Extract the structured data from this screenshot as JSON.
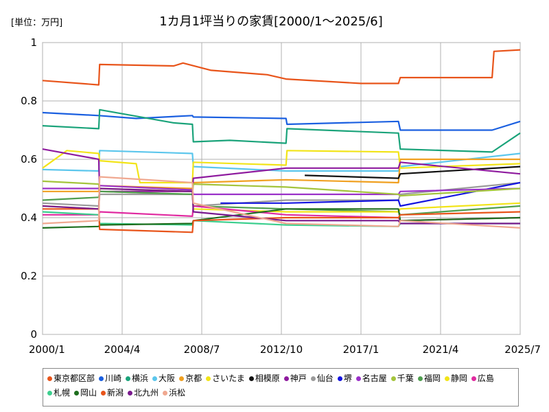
{
  "chart_data": {
    "type": "line",
    "title": "1カ月1坪当りの家賃[2000/1～2025/6]",
    "unit_label": "[単位：万円]",
    "xlabel": "",
    "ylabel": "",
    "ylim": [
      0,
      1
    ],
    "y_ticks": [
      "0",
      "0.2",
      "0.4",
      "0.6",
      "0.8",
      "1"
    ],
    "y_tick_values": [
      0,
      0.2,
      0.4,
      0.6,
      0.8,
      1
    ],
    "x_range": [
      2000.0,
      2025.5
    ],
    "x_ticks": [
      "2000/1",
      "2004/4",
      "2008/7",
      "2012/10",
      "2017/1",
      "2021/4",
      "2025/7"
    ],
    "x_tick_values": [
      2000.0,
      2004.25,
      2008.5,
      2012.75,
      2017.0,
      2021.25,
      2025.5
    ],
    "grid": true,
    "legend_position": "bottom",
    "series": [
      {
        "name": "東京都区部",
        "color": "#e8541a",
        "x": [
          2000.0,
          2003.0,
          2003.05,
          2007.0,
          2007.5,
          2009.0,
          2012.0,
          2013.0,
          2017.0,
          2019.0,
          2019.1,
          2024.0,
          2024.1,
          2025.5
        ],
        "values": [
          0.87,
          0.855,
          0.925,
          0.92,
          0.93,
          0.905,
          0.89,
          0.875,
          0.86,
          0.86,
          0.88,
          0.88,
          0.97,
          0.975
        ]
      },
      {
        "name": "川崎",
        "color": "#1a5fe0",
        "x": [
          2000.0,
          2003.0,
          2005.0,
          2008.0,
          2008.05,
          2013.0,
          2013.05,
          2019.0,
          2019.1,
          2024.0,
          2025.5
        ],
        "values": [
          0.76,
          0.75,
          0.74,
          0.75,
          0.745,
          0.74,
          0.72,
          0.73,
          0.7,
          0.7,
          0.73
        ]
      },
      {
        "name": "横浜",
        "color": "#1aa37a",
        "x": [
          2000.0,
          2003.0,
          2003.05,
          2007.0,
          2008.0,
          2008.05,
          2010.0,
          2013.0,
          2013.05,
          2019.0,
          2019.1,
          2024.0,
          2025.5
        ],
        "values": [
          0.715,
          0.705,
          0.77,
          0.725,
          0.72,
          0.66,
          0.665,
          0.655,
          0.705,
          0.69,
          0.635,
          0.625,
          0.69
        ]
      },
      {
        "name": "大阪",
        "color": "#5bc6ec",
        "x": [
          2000.0,
          2003.0,
          2003.05,
          2008.0,
          2008.05,
          2013.0,
          2019.0,
          2019.1,
          2025.5
        ],
        "values": [
          0.565,
          0.56,
          0.63,
          0.62,
          0.575,
          0.56,
          0.56,
          0.575,
          0.62
        ]
      },
      {
        "name": "京都",
        "color": "#f0a020",
        "x": [
          2000.0,
          2003.0,
          2003.05,
          2008.0,
          2008.05,
          2013.0,
          2019.0,
          2019.1,
          2025.5
        ],
        "values": [
          0.49,
          0.49,
          0.51,
          0.5,
          0.52,
          0.53,
          0.52,
          0.6,
          0.6
        ]
      },
      {
        "name": "さいたま",
        "color": "#f2e418",
        "x": [
          2000.0,
          2001.3,
          2003.0,
          2003.05,
          2005.0,
          2005.2,
          2008.0,
          2008.05,
          2013.0,
          2013.05,
          2019.0,
          2019.1,
          2025.5
        ],
        "values": [
          0.57,
          0.63,
          0.62,
          0.595,
          0.585,
          0.52,
          0.52,
          0.59,
          0.58,
          0.63,
          0.625,
          0.57,
          0.585
        ]
      },
      {
        "name": "相模原",
        "color": "#111111",
        "x": [
          2014.0,
          2019.0,
          2019.1,
          2025.5
        ],
        "values": [
          0.545,
          0.535,
          0.55,
          0.575
        ]
      },
      {
        "name": "神戸",
        "color": "#8e1a9e",
        "x": [
          2000.0,
          2003.0,
          2003.05,
          2008.0,
          2008.05,
          2013.0,
          2019.0,
          2019.1,
          2025.5
        ],
        "values": [
          0.635,
          0.6,
          0.49,
          0.49,
          0.535,
          0.57,
          0.57,
          0.59,
          0.55
        ]
      },
      {
        "name": "仙台",
        "color": "#9a9a9a",
        "x": [
          2000.0,
          2003.0,
          2003.05,
          2008.0,
          2008.05,
          2013.0,
          2019.0,
          2019.1,
          2025.5
        ],
        "values": [
          0.45,
          0.44,
          0.48,
          0.48,
          0.44,
          0.46,
          0.46,
          0.48,
          0.52
        ]
      },
      {
        "name": "堺",
        "color": "#1414e0",
        "x": [
          2009.5,
          2013.0,
          2019.0,
          2019.1,
          2025.5
        ],
        "values": [
          0.45,
          0.45,
          0.46,
          0.44,
          0.52
        ]
      },
      {
        "name": "名古屋",
        "color": "#9a30c8",
        "x": [
          2000.0,
          2003.0,
          2003.05,
          2008.0,
          2008.05,
          2013.0,
          2019.0,
          2019.1,
          2025.5
        ],
        "values": [
          0.5,
          0.5,
          0.51,
          0.495,
          0.48,
          0.48,
          0.48,
          0.49,
          0.5
        ]
      },
      {
        "name": "千葉",
        "color": "#a4c43c",
        "x": [
          2000.0,
          2003.0,
          2003.05,
          2008.0,
          2008.05,
          2013.0,
          2019.0,
          2019.1,
          2025.5
        ],
        "values": [
          0.525,
          0.515,
          0.49,
          0.48,
          0.515,
          0.505,
          0.48,
          0.475,
          0.5
        ]
      },
      {
        "name": "福岡",
        "color": "#4e9e4e",
        "x": [
          2000.0,
          2003.0,
          2003.05,
          2008.0,
          2008.05,
          2013.0,
          2019.0,
          2019.1,
          2025.5
        ],
        "values": [
          0.46,
          0.47,
          0.49,
          0.48,
          0.44,
          0.43,
          0.42,
          0.41,
          0.44
        ]
      },
      {
        "name": "静岡",
        "color": "#f2e418",
        "x": [
          2000.0,
          2003.0,
          2003.05,
          2008.0,
          2008.05,
          2013.0,
          2019.0,
          2019.1,
          2025.5
        ],
        "values": [
          0.44,
          0.43,
          0.5,
          0.49,
          0.43,
          0.42,
          0.42,
          0.43,
          0.45
        ]
      },
      {
        "name": "広島",
        "color": "#e02aa0",
        "x": [
          2000.0,
          2003.0,
          2003.05,
          2008.0,
          2008.05,
          2013.0,
          2019.0,
          2019.1,
          2025.5
        ],
        "values": [
          0.41,
          0.41,
          0.42,
          0.405,
          0.44,
          0.41,
          0.4,
          0.39,
          0.4
        ]
      },
      {
        "name": "札幌",
        "color": "#3ccf8e",
        "x": [
          2000.0,
          2003.0,
          2003.05,
          2008.0,
          2008.05,
          2013.0,
          2019.0,
          2019.1,
          2025.5
        ],
        "values": [
          0.42,
          0.41,
          0.38,
          0.375,
          0.39,
          0.375,
          0.37,
          0.38,
          0.38
        ]
      },
      {
        "name": "岡山",
        "color": "#1e6e1e",
        "x": [
          2000.0,
          2003.0,
          2003.05,
          2008.0,
          2008.05,
          2013.0,
          2019.0,
          2019.1,
          2025.5
        ],
        "values": [
          0.365,
          0.37,
          0.375,
          0.38,
          0.39,
          0.43,
          0.43,
          0.39,
          0.4
        ]
      },
      {
        "name": "新潟",
        "color": "#e8541a",
        "x": [
          2000.0,
          2003.0,
          2003.05,
          2008.0,
          2008.05,
          2013.0,
          2019.0,
          2019.1,
          2025.5
        ],
        "values": [
          0.43,
          0.43,
          0.36,
          0.35,
          0.39,
          0.4,
          0.4,
          0.41,
          0.42
        ]
      },
      {
        "name": "北九州",
        "color": "#7a1a8e",
        "x": [
          2000.0,
          2003.0,
          2003.05,
          2008.0,
          2008.05,
          2013.0,
          2019.0,
          2019.1,
          2025.5
        ],
        "values": [
          0.44,
          0.43,
          0.5,
          0.49,
          0.42,
          0.39,
          0.39,
          0.38,
          0.38
        ]
      },
      {
        "name": "浜松",
        "color": "#f0a890",
        "x": [
          2000.0,
          2003.0,
          2003.05,
          2008.0,
          2008.05,
          2013.0,
          2019.0,
          2019.1,
          2025.5
        ],
        "values": [
          0.38,
          0.39,
          0.54,
          0.52,
          0.45,
          0.38,
          0.37,
          0.39,
          0.365
        ]
      }
    ]
  }
}
